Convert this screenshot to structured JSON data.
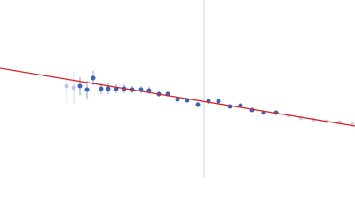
{
  "chart_data": {
    "type": "scatter",
    "xlim": [
      0,
      400
    ],
    "ylim": [
      0,
      200
    ],
    "series": [
      {
        "color": "#b9c8e6",
        "x": [
          75,
          83
        ],
        "values": [
          103,
          101
        ],
        "errors": [
          18,
          18
        ]
      },
      {
        "color": "#3a62b8",
        "x": [
          90,
          98,
          105,
          114,
          122,
          131,
          140,
          149,
          159,
          168,
          179,
          189,
          200,
          211,
          223,
          235,
          246,
          259,
          271,
          284,
          297,
          311
        ],
        "values": [
          103,
          99,
          112,
          100,
          100,
          100,
          100,
          99,
          99,
          98,
          94,
          94,
          88,
          87,
          82,
          86,
          86,
          80,
          81,
          76,
          73,
          73
        ],
        "errors": [
          10,
          10,
          8,
          6,
          6,
          5,
          5,
          4,
          4,
          4,
          3,
          3,
          3,
          3,
          3,
          3,
          3,
          2,
          2,
          2,
          2,
          2
        ]
      },
      {
        "color": "#c9d4ec",
        "x": [
          325,
          339,
          353,
          368,
          383,
          397
        ],
        "values": [
          70,
          67,
          65,
          63,
          62,
          60
        ],
        "errors": [
          2,
          2,
          2,
          2,
          2,
          2
        ]
      }
    ],
    "fit_line": {
      "color": "#d62728",
      "x": [
        0,
        400
      ],
      "values": [
        123,
        58
      ]
    },
    "vline": {
      "color": "#c8d0e8",
      "x": 230
    }
  }
}
